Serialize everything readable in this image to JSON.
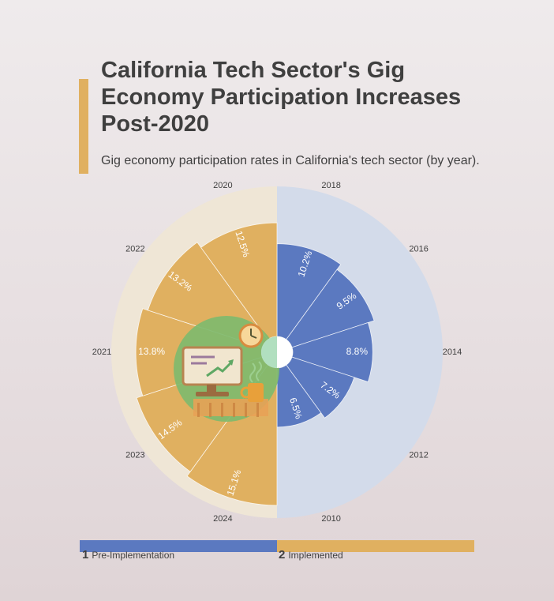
{
  "title": "California Tech Sector's Gig Economy Participation Increases Post-2020",
  "subtitle": "Gig economy participation rates in California's tech sector (by year).",
  "colors": {
    "accent": "#e0b060",
    "pre": "#5b79c0",
    "post": "#e0b060",
    "pre_bg": "#d3dbea",
    "post_bg": "#efe6d6",
    "center": "#ffffff",
    "illustration_bg": "#7fba6e"
  },
  "chart_data": {
    "type": "radial-bar",
    "title": "California Tech Sector's Gig Economy Participation Increases Post-2020",
    "series": [
      {
        "name": "Pre-Implementation",
        "points": [
          {
            "year": "2018",
            "value": 10.2,
            "label": "10.2%"
          },
          {
            "year": "2016",
            "value": 9.5,
            "label": "9.5%"
          },
          {
            "year": "2014",
            "value": 8.8,
            "label": "8.8%"
          },
          {
            "year": "2012",
            "value": 7.2,
            "label": "7.2%"
          },
          {
            "year": "2010",
            "value": 6.5,
            "label": "6.5%"
          }
        ]
      },
      {
        "name": "Implemented",
        "points": [
          {
            "year": "2024",
            "value": 15.1,
            "label": "15.1%"
          },
          {
            "year": "2023",
            "value": 14.5,
            "label": "14.5%"
          },
          {
            "year": "2021",
            "value": 13.8,
            "label": "13.8%"
          },
          {
            "year": "2022",
            "value": 13.2,
            "label": "13.2%"
          },
          {
            "year": "2020",
            "value": 12.5,
            "label": "12.5%"
          }
        ]
      }
    ],
    "value_range": [
      0,
      16.5
    ],
    "icon": "remote-work-illustration"
  },
  "legend": [
    {
      "num": "1",
      "label": "Pre-Implementation"
    },
    {
      "num": "2",
      "label": "Implemented"
    }
  ]
}
